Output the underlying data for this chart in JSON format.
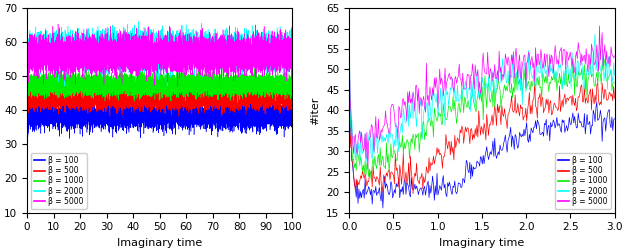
{
  "left": {
    "xlim": [
      0,
      100
    ],
    "ylim": [
      10,
      70
    ],
    "xlabel": "Imaginary time",
    "yticks": [
      10,
      20,
      30,
      40,
      50,
      60,
      70
    ],
    "xticks": [
      0,
      10,
      20,
      30,
      40,
      50,
      60,
      70,
      80,
      90,
      100
    ],
    "n_steps": 10000,
    "series": [
      {
        "beta": 100,
        "color": "blue",
        "mean": 38.5,
        "std": 1.8,
        "start": 20,
        "rise_end": 0.5
      },
      {
        "beta": 500,
        "color": "red",
        "mean": 43.5,
        "std": 1.5,
        "start": 22,
        "rise_end": 0.4
      },
      {
        "beta": 1000,
        "color": "#00ee00",
        "mean": 47.5,
        "std": 1.5,
        "start": 25,
        "rise_end": 0.3
      },
      {
        "beta": 2000,
        "color": "cyan",
        "mean": 57.5,
        "std": 2.5,
        "start": 27,
        "rise_end": 0.2
      },
      {
        "beta": 5000,
        "color": "magenta",
        "mean": 56.5,
        "std": 2.5,
        "start": 28,
        "rise_end": 0.15
      }
    ],
    "legend_labels": [
      "β = 100",
      "β = 500",
      "β = 1000",
      "β = 2000",
      "β = 5000"
    ],
    "legend_loc": "lower left"
  },
  "right": {
    "xlim": [
      0,
      3
    ],
    "ylim": [
      15,
      65
    ],
    "xlabel": "Imaginary time",
    "ylabel": "#iter",
    "yticks": [
      15,
      20,
      25,
      30,
      35,
      40,
      45,
      50,
      55,
      60,
      65
    ],
    "xticks": [
      0,
      0.5,
      1.0,
      1.5,
      2.0,
      2.5,
      3.0
    ],
    "n_steps": 300,
    "series": [
      {
        "beta": 100,
        "color": "blue",
        "start": 60,
        "drop": 20,
        "drop_at": 0.07,
        "plateau": 20.5,
        "rise_start": 1.2,
        "settle": 39,
        "std": 1.5
      },
      {
        "beta": 500,
        "color": "red",
        "start": 52,
        "drop": 22,
        "drop_at": 0.07,
        "plateau": 23,
        "rise_start": 0.8,
        "settle": 45,
        "std": 1.8
      },
      {
        "beta": 1000,
        "color": "#00ee00",
        "start": 55,
        "drop": 26,
        "drop_at": 0.07,
        "plateau": 27,
        "rise_start": 0.45,
        "settle": 50,
        "std": 2.0
      },
      {
        "beta": 2000,
        "color": "cyan",
        "start": 59,
        "drop": 29,
        "drop_at": 0.07,
        "plateau": 30,
        "rise_start": 0.25,
        "settle": 52,
        "std": 2.5
      },
      {
        "beta": 5000,
        "color": "magenta",
        "start": 60,
        "drop": 30,
        "drop_at": 0.07,
        "plateau": 31,
        "rise_start": 0.15,
        "settle": 55,
        "std": 2.5
      }
    ],
    "legend_labels": [
      "β = 100",
      "β = 500",
      "β = 1000",
      "β = 2000",
      "β = 5000"
    ],
    "legend_loc": "lower right"
  },
  "figsize": [
    6.27,
    2.52
  ],
  "dpi": 100
}
